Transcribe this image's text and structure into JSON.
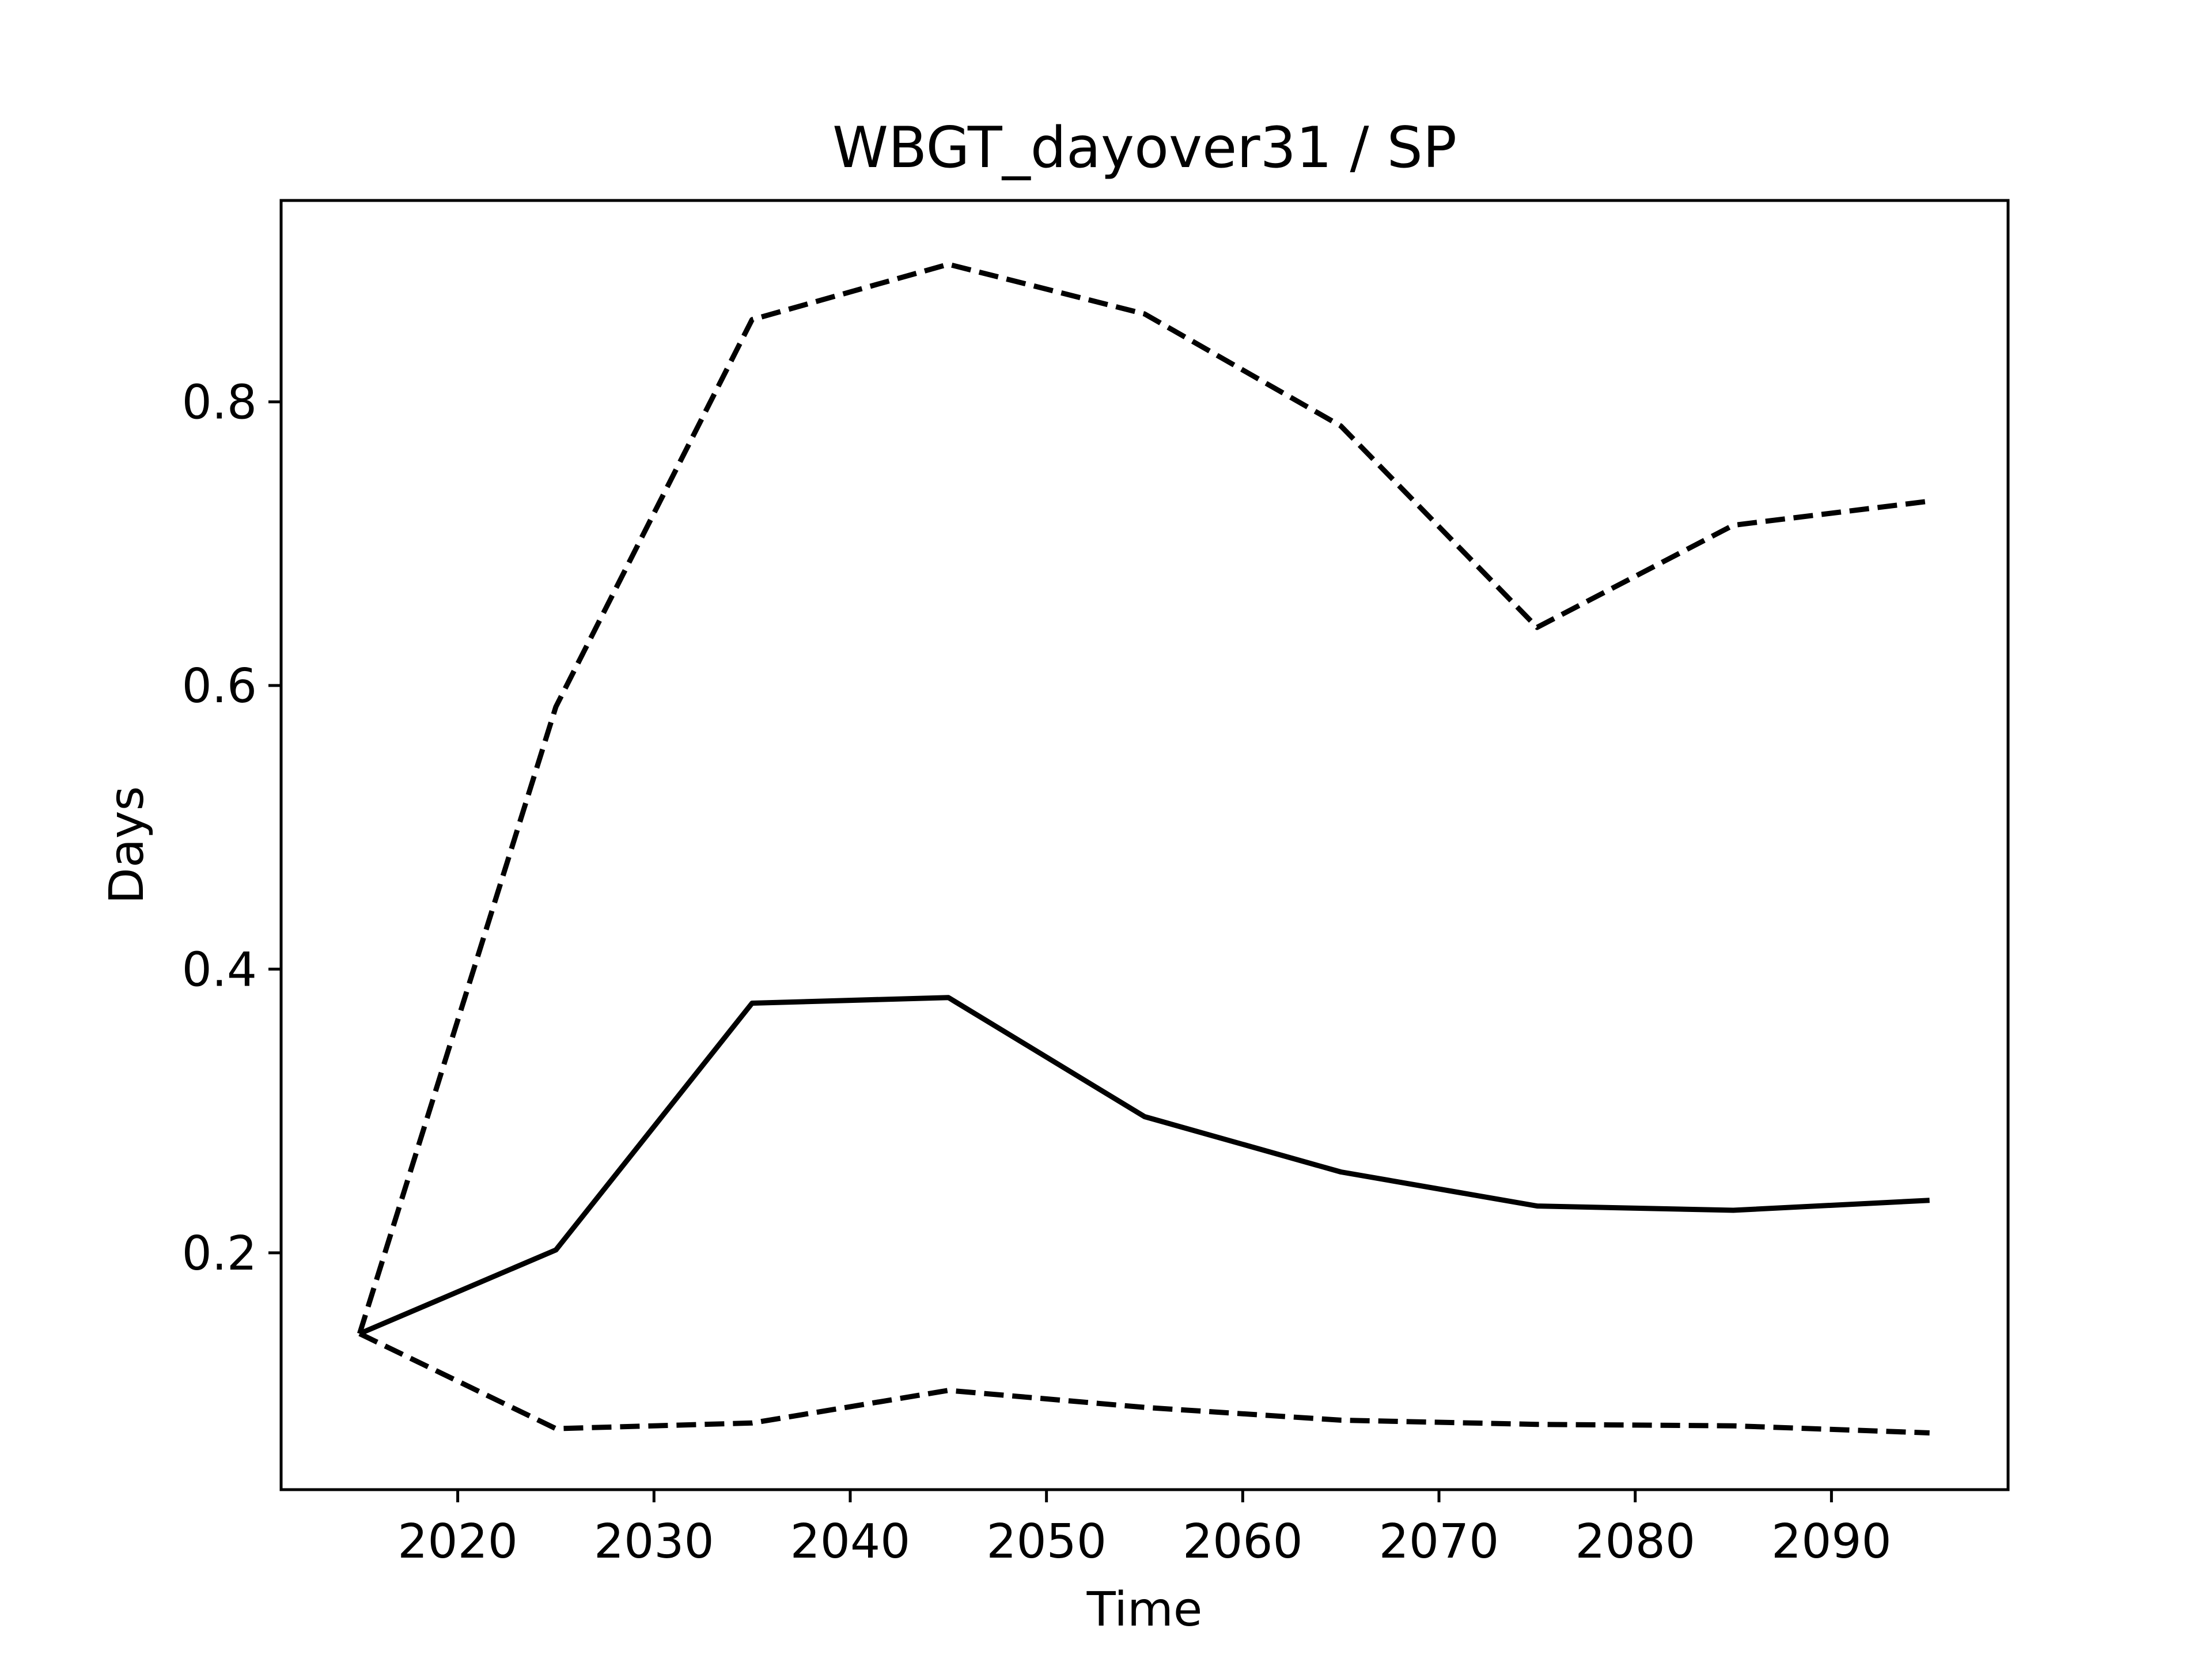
{
  "chart_data": {
    "type": "line",
    "title": "WBGT_dayover31 / SP",
    "xlabel": "Time",
    "ylabel": "Days",
    "xlim": [
      2011,
      2099
    ],
    "ylim": [
      0.033,
      0.942
    ],
    "xticks": [
      2020,
      2030,
      2040,
      2050,
      2060,
      2070,
      2080,
      2090
    ],
    "yticks": [
      0.2,
      0.4,
      0.6,
      0.8
    ],
    "xtick_labels": [
      "2020",
      "2030",
      "2040",
      "2050",
      "2060",
      "2070",
      "2080",
      "2090"
    ],
    "ytick_labels": [
      "0.2",
      "0.4",
      "0.6",
      "0.8"
    ],
    "grid": false,
    "legend": "none",
    "x": [
      2015,
      2025,
      2035,
      2045,
      2055,
      2065,
      2075,
      2085,
      2095
    ],
    "series": [
      {
        "style": "dashed",
        "color": "#000000",
        "values": [
          0.143,
          0.585,
          0.858,
          0.897,
          0.862,
          0.783,
          0.641,
          0.713,
          0.73
        ]
      },
      {
        "style": "solid",
        "color": "#000000",
        "values": [
          0.143,
          0.202,
          0.376,
          0.38,
          0.296,
          0.257,
          0.233,
          0.23,
          0.237
        ]
      },
      {
        "style": "dashed",
        "color": "#000000",
        "values": [
          0.143,
          0.076,
          0.08,
          0.103,
          0.091,
          0.082,
          0.079,
          0.078,
          0.073
        ]
      }
    ]
  }
}
